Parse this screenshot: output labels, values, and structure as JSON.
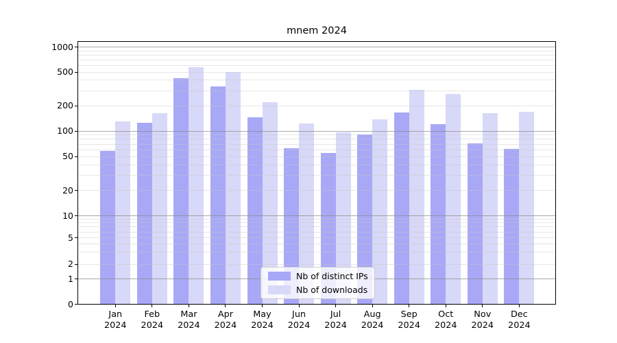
{
  "title": "mnem 2024",
  "chart_data": {
    "type": "bar",
    "title": "mnem 2024",
    "categories": [
      "Jan",
      "Feb",
      "Mar",
      "Apr",
      "May",
      "Jun",
      "Jul",
      "Aug",
      "Sep",
      "Oct",
      "Nov",
      "Dec"
    ],
    "year": "2024",
    "series": [
      {
        "name": "Nb of distinct IPs",
        "color": "#a8a8f6",
        "values": [
          58,
          125,
          425,
          335,
          145,
          63,
          55,
          91,
          165,
          120,
          71,
          61
        ]
      },
      {
        "name": "Nb of downloads",
        "color": "#d8d8f8",
        "values": [
          130,
          163,
          570,
          500,
          220,
          124,
          96,
          137,
          305,
          275,
          163,
          168
        ]
      }
    ],
    "yscale": "log with zero baseline",
    "yticks": [
      1000,
      500,
      200,
      100,
      50,
      20,
      10,
      5,
      2,
      1,
      0
    ],
    "ylim": [
      0,
      1150
    ],
    "grid": "horizontal, minor faint + major darker at 1/10/100/1000, drawn over bars",
    "legend_position": "lower center",
    "xlabel": "",
    "ylabel": ""
  },
  "colors": {
    "distinct_ips_bar": "#a8a8f6",
    "downloads_bar": "#d8d8f8",
    "major_grid": "#8c8c8c",
    "minor_grid": "#c8c8c8",
    "spine": "#000000",
    "legend_border": "#cccccc",
    "background": "#ffffff"
  }
}
